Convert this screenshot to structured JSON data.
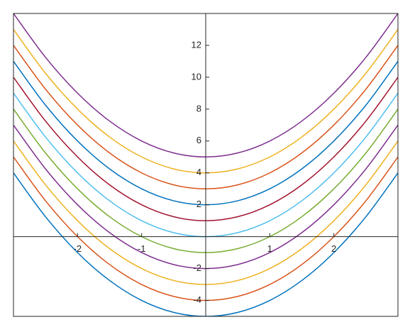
{
  "chart_data": {
    "type": "line",
    "x": [
      -3,
      -2.5,
      -2,
      -1.5,
      -1,
      -0.5,
      0,
      0.5,
      1,
      1.5,
      2,
      2.5,
      3
    ],
    "series": [
      {
        "color": "#0072BD",
        "values": [
          4,
          1.25,
          -1,
          -2.75,
          -4,
          -4.75,
          -5,
          -4.75,
          -4,
          -2.75,
          -1,
          1.25,
          4
        ]
      },
      {
        "color": "#D95319",
        "values": [
          5,
          2.25,
          0,
          -1.75,
          -3,
          -3.75,
          -4,
          -3.75,
          -3,
          -1.75,
          0,
          2.25,
          5
        ]
      },
      {
        "color": "#EDB120",
        "values": [
          6,
          3.25,
          1,
          -0.75,
          -2,
          -2.75,
          -3,
          -2.75,
          -2,
          -0.75,
          1,
          3.25,
          6
        ]
      },
      {
        "color": "#7E2F8E",
        "values": [
          7,
          4.25,
          2,
          0.25,
          -1,
          -1.75,
          -2,
          -1.75,
          -1,
          0.25,
          2,
          4.25,
          7
        ]
      },
      {
        "color": "#77AC30",
        "values": [
          8,
          5.25,
          3,
          1.25,
          0,
          -0.75,
          -1,
          -0.75,
          0,
          1.25,
          3,
          5.25,
          8
        ]
      },
      {
        "color": "#4DBEEE",
        "values": [
          9,
          6.25,
          4,
          2.25,
          1,
          0.25,
          0,
          0.25,
          1,
          2.25,
          4,
          6.25,
          9
        ]
      },
      {
        "color": "#A2142F",
        "values": [
          10,
          7.25,
          5,
          3.25,
          2,
          1.25,
          1,
          1.25,
          2,
          3.25,
          5,
          7.25,
          10
        ]
      },
      {
        "color": "#0072BD",
        "values": [
          11,
          8.25,
          6,
          4.25,
          3,
          2.25,
          2,
          2.25,
          3,
          4.25,
          6,
          8.25,
          11
        ]
      },
      {
        "color": "#D95319",
        "values": [
          12,
          9.25,
          7,
          5.25,
          4,
          3.25,
          3,
          3.25,
          4,
          5.25,
          7,
          9.25,
          12
        ]
      },
      {
        "color": "#EDB120",
        "values": [
          13,
          10.25,
          8,
          6.25,
          5,
          4.25,
          4,
          4.25,
          5,
          6.25,
          8,
          10.25,
          13
        ]
      },
      {
        "color": "#7E2F8E",
        "values": [
          14,
          11.25,
          9,
          7.25,
          6,
          5.25,
          5,
          5.25,
          6,
          7.25,
          9,
          11.25,
          14
        ]
      }
    ],
    "xlim": [
      -3,
      3
    ],
    "ylim": [
      -5,
      14
    ],
    "xticks": [
      -2,
      -1,
      1,
      2
    ],
    "yticks": [
      -4,
      -2,
      2,
      4,
      6,
      8,
      10,
      12
    ],
    "grid": false
  }
}
